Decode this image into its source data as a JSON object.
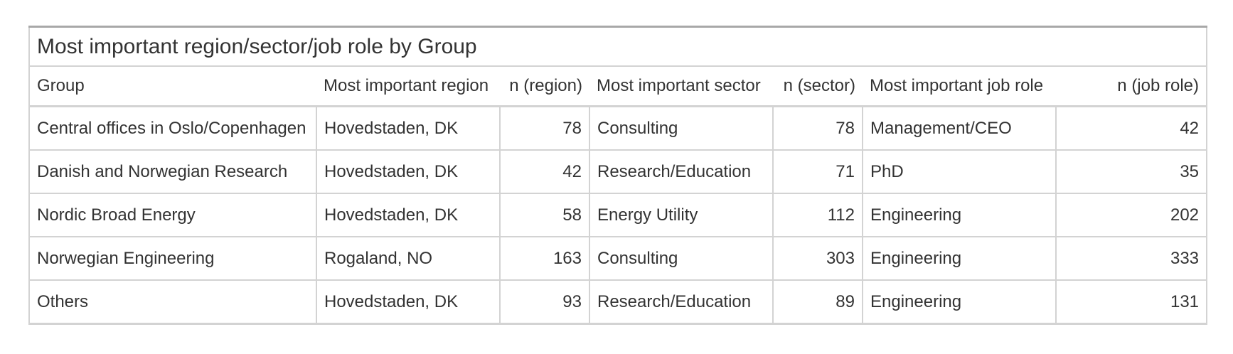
{
  "table": {
    "title": "Most important region/sector/job role by Group",
    "columns": [
      "Group",
      "Most important region",
      "n (region)",
      "Most important sector",
      "n (sector)",
      "Most important job role",
      "n (job role)"
    ],
    "rows": [
      [
        "Central offices in Oslo/Copenhagen",
        "Hovedstaden, DK",
        "78",
        "Consulting",
        "78",
        "Management/CEO",
        "42"
      ],
      [
        "Danish and Norwegian Research",
        "Hovedstaden, DK",
        "42",
        "Research/Education",
        "71",
        "PhD",
        "35"
      ],
      [
        "Nordic Broad Energy",
        "Hovedstaden, DK",
        "58",
        "Energy Utility",
        "112",
        "Engineering",
        "202"
      ],
      [
        "Norwegian Engineering",
        "Rogaland, NO",
        "163",
        "Consulting",
        "303",
        "Engineering",
        "333"
      ],
      [
        "Others",
        "Hovedstaden, DK",
        "93",
        "Research/Education",
        "89",
        "Engineering",
        "131"
      ]
    ]
  }
}
